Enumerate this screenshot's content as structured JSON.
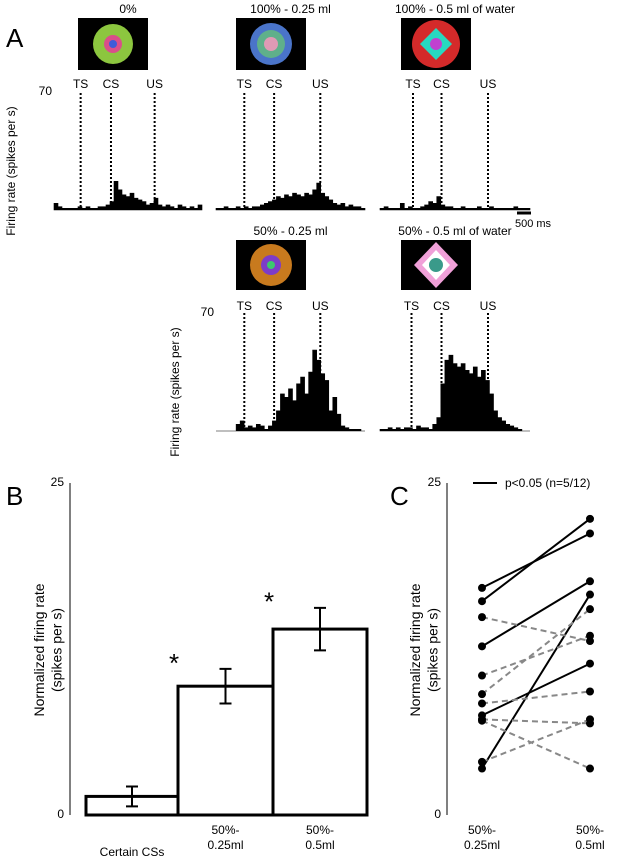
{
  "panels": [
    "A",
    "B",
    "C"
  ],
  "chart_data": [
    {
      "type": "area",
      "title": "0%",
      "ylabel": "Firing rate (spikes per s)",
      "events": [
        "TS",
        "CS",
        "US"
      ],
      "ylim": [
        0,
        70
      ],
      "yticks": [
        70
      ],
      "color": "#000000",
      "values": [
        4,
        2,
        1,
        1,
        1,
        1,
        2,
        1,
        2,
        1,
        1,
        2,
        2,
        3,
        5,
        17,
        12,
        9,
        8,
        10,
        7,
        6,
        5,
        3,
        4,
        7,
        3,
        2,
        3,
        2,
        1,
        3,
        2,
        1,
        2,
        1,
        3
      ]
    },
    {
      "type": "area",
      "title": "100% - 0.25 ml",
      "events": [
        "TS",
        "CS",
        "US"
      ],
      "ylim": [
        0,
        70
      ],
      "color": "#000000",
      "values": [
        1,
        1,
        2,
        1,
        1,
        2,
        1,
        2,
        1,
        2,
        2,
        3,
        4,
        5,
        6,
        8,
        7,
        9,
        8,
        10,
        9,
        8,
        10,
        9,
        12,
        16,
        10,
        8,
        6,
        4,
        3,
        4,
        2,
        3,
        2,
        2,
        1
      ]
    },
    {
      "type": "area",
      "title": "100% - 0.5 ml of water",
      "events": [
        "TS",
        "CS",
        "US"
      ],
      "ylim": [
        0,
        70
      ],
      "color": "#000000",
      "scalebar_label": "500 ms",
      "values": [
        1,
        2,
        1,
        1,
        1,
        4,
        1,
        2,
        1,
        1,
        2,
        3,
        5,
        4,
        8,
        3,
        2,
        2,
        1,
        1,
        2,
        1,
        1,
        1,
        2,
        1,
        1,
        2,
        1,
        1,
        1,
        1,
        1,
        2,
        1,
        1,
        1
      ]
    },
    {
      "type": "area",
      "title": "50% - 0.25 ml",
      "ylabel": "Firing rate (spikes per s)",
      "events": [
        "TS",
        "CS",
        "US"
      ],
      "ylim": [
        0,
        70
      ],
      "yticks": [
        70
      ],
      "color": "#000000",
      "values": [
        0,
        0,
        0,
        0,
        0,
        4,
        6,
        2,
        3,
        2,
        4,
        3,
        1,
        3,
        6,
        12,
        22,
        20,
        25,
        18,
        28,
        32,
        22,
        35,
        48,
        42,
        34,
        30,
        12,
        20,
        10,
        3,
        2,
        1,
        1,
        1,
        0
      ]
    },
    {
      "type": "area",
      "title": "50% - 0.5 ml of water",
      "events": [
        "TS",
        "CS",
        "US"
      ],
      "ylim": [
        0,
        70
      ],
      "color": "#000000",
      "values": [
        1,
        1,
        2,
        1,
        2,
        1,
        2,
        2,
        1,
        3,
        2,
        2,
        1,
        4,
        8,
        28,
        42,
        45,
        40,
        38,
        40,
        36,
        34,
        38,
        32,
        36,
        30,
        22,
        12,
        8,
        6,
        4,
        3,
        2,
        1,
        0,
        0
      ]
    },
    {
      "type": "bar",
      "ylabel": "Normalized firing rate\n(spikes per s)",
      "categories": [
        "Certain CSs",
        "50%-\n0.25ml",
        "50%-\n0.5ml"
      ],
      "values": [
        1.4,
        9.7,
        14.0
      ],
      "errors": [
        0.75,
        1.3,
        1.6
      ],
      "annotations": [
        "*",
        "*"
      ],
      "ylim": [
        0,
        25
      ],
      "yticks": [
        0,
        25
      ],
      "color": "#ffffff"
    },
    {
      "type": "line",
      "ylabel": "Normalized firing rate\n(spikes per s)",
      "categories": [
        "50%-\n0.25ml",
        "50%-\n0.5ml"
      ],
      "legend_label": "p<0.05 (n=5/12)",
      "ylim": [
        0,
        25
      ],
      "yticks": [
        0,
        25
      ],
      "series": [
        {
          "color": "#000000",
          "dashed": false,
          "values": [
            16.1,
            22.3
          ]
        },
        {
          "color": "#000000",
          "dashed": false,
          "values": [
            17.1,
            21.2
          ]
        },
        {
          "color": "#000000",
          "dashed": false,
          "values": [
            12.7,
            17.6
          ]
        },
        {
          "color": "#000000",
          "dashed": false,
          "values": [
            7.5,
            11.4
          ]
        },
        {
          "color": "#000000",
          "dashed": false,
          "values": [
            3.5,
            16.6
          ]
        },
        {
          "color": "#888888",
          "dashed": true,
          "values": [
            14.9,
            13.1
          ]
        },
        {
          "color": "#888888",
          "dashed": true,
          "values": [
            10.5,
            13.5
          ]
        },
        {
          "color": "#888888",
          "dashed": true,
          "values": [
            9.1,
            15.5
          ]
        },
        {
          "color": "#888888",
          "dashed": true,
          "values": [
            8.4,
            9.3
          ]
        },
        {
          "color": "#888888",
          "dashed": true,
          "values": [
            7.1,
            3.5
          ]
        },
        {
          "color": "#888888",
          "dashed": true,
          "values": [
            7.2,
            6.9
          ]
        },
        {
          "color": "#888888",
          "dashed": true,
          "values": [
            4.0,
            7.2
          ]
        }
      ]
    }
  ]
}
